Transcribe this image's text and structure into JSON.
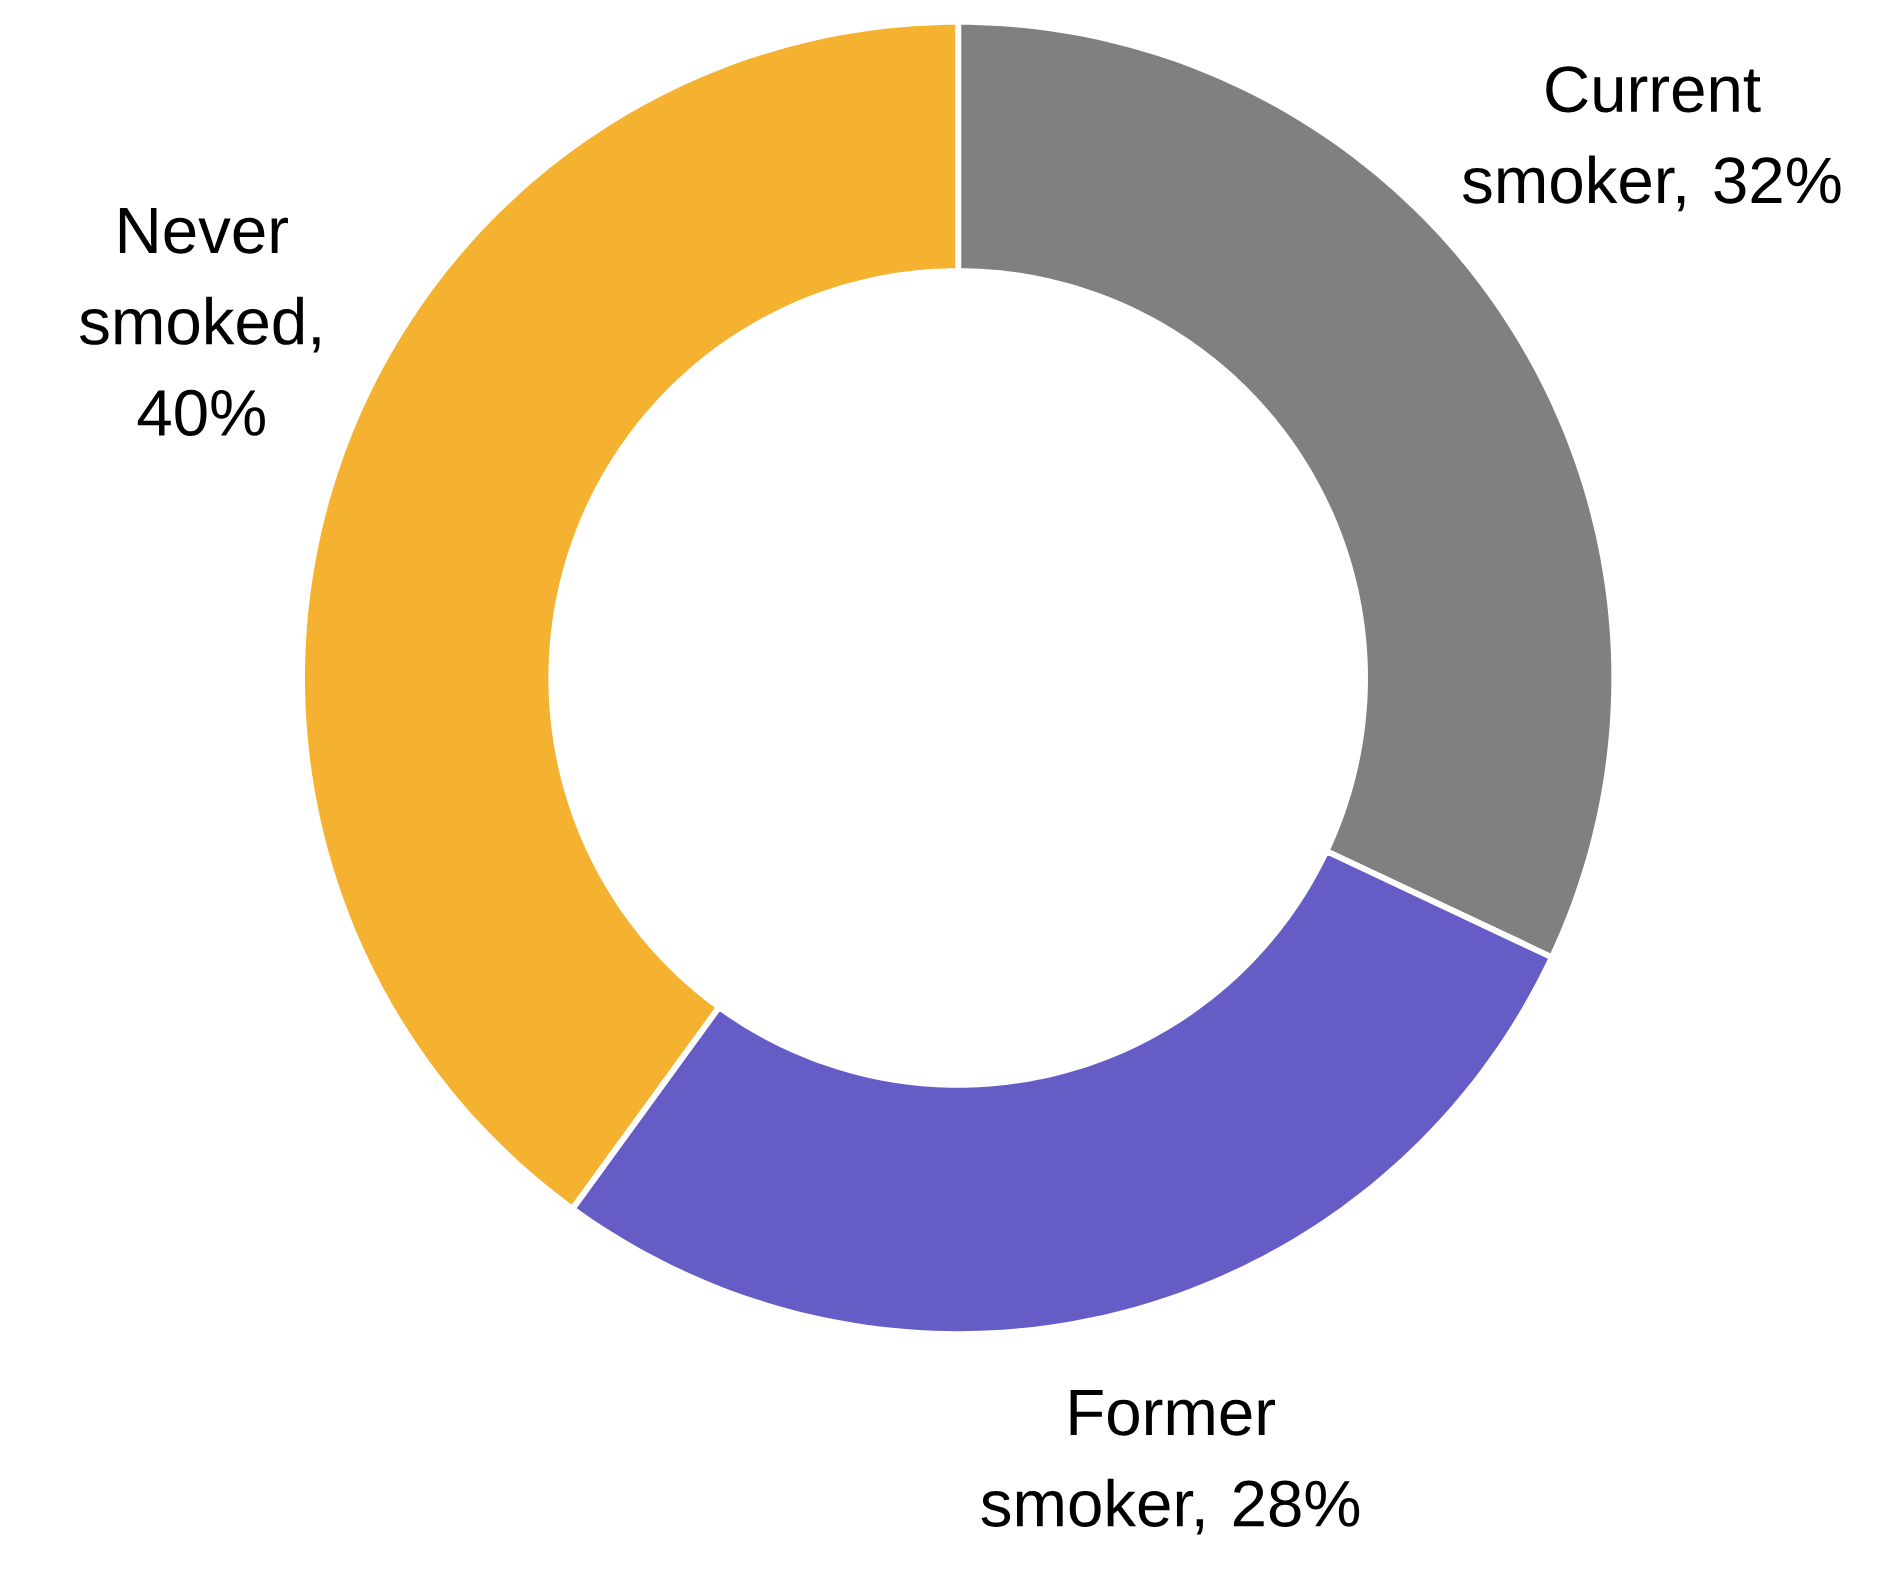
{
  "chart_data": {
    "type": "donut",
    "categories": [
      null,
      null,
      null
    ],
    "values": [
      32,
      28,
      40
    ],
    "colors": [
      "#808080",
      "#665cc6",
      "#f5b231"
    ],
    "value_labels": [
      "Current smoker, 32%",
      "Former smoker, 28%",
      "Never smoked, 40%"
    ]
  }
}
